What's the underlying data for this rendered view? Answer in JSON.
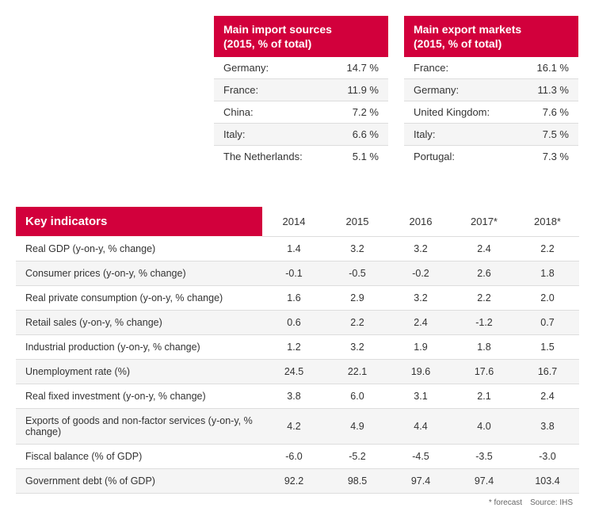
{
  "imports": {
    "title_line1": "Main import sources",
    "title_line2": "(2015, % of total)",
    "rows": [
      {
        "country": "Germany:",
        "value": "14.7 %"
      },
      {
        "country": "France:",
        "value": "11.9 %"
      },
      {
        "country": "China:",
        "value": "7.2 %"
      },
      {
        "country": "Italy:",
        "value": "6.6 %"
      },
      {
        "country": "The Netherlands:",
        "value": "5.1 %"
      }
    ]
  },
  "exports": {
    "title_line1": "Main export markets",
    "title_line2": "(2015, % of total)",
    "rows": [
      {
        "country": "France:",
        "value": "16.1 %"
      },
      {
        "country": "Germany:",
        "value": "11.3 %"
      },
      {
        "country": "United Kingdom:",
        "value": "7.6 %"
      },
      {
        "country": "Italy:",
        "value": "7.5 %"
      },
      {
        "country": "Portugal:",
        "value": "7.3 %"
      }
    ]
  },
  "key": {
    "header": "Key indicators",
    "years": [
      "2014",
      "2015",
      "2016",
      "2017*",
      "2018*"
    ],
    "rows": [
      {
        "label": "Real GDP (y-on-y, % change)",
        "vals": [
          "1.4",
          "3.2",
          "3.2",
          "2.4",
          "2.2"
        ]
      },
      {
        "label": "Consumer prices (y-on-y, % change)",
        "vals": [
          "-0.1",
          "-0.5",
          "-0.2",
          "2.6",
          "1.8"
        ]
      },
      {
        "label": "Real private consumption (y-on-y, % change)",
        "vals": [
          "1.6",
          "2.9",
          "3.2",
          "2.2",
          "2.0"
        ]
      },
      {
        "label": "Retail sales (y-on-y, % change)",
        "vals": [
          "0.6",
          "2.2",
          "2.4",
          "-1.2",
          "0.7"
        ]
      },
      {
        "label": "Industrial production (y-on-y, % change)",
        "vals": [
          "1.2",
          "3.2",
          "1.9",
          "1.8",
          "1.5"
        ]
      },
      {
        "label": "Unemployment rate (%)",
        "vals": [
          "24.5",
          "22.1",
          "19.6",
          "17.6",
          "16.7"
        ]
      },
      {
        "label": "Real fixed investment (y-on-y, % change)",
        "vals": [
          "3.8",
          "6.0",
          "3.1",
          "2.1",
          "2.4"
        ]
      },
      {
        "label": "Exports of goods and non-factor services (y-on-y, % change)",
        "vals": [
          "4.2",
          "4.9",
          "4.4",
          "4.0",
          "3.8"
        ]
      },
      {
        "label": "Fiscal balance (% of GDP)",
        "vals": [
          "-6.0",
          "-5.2",
          "-4.5",
          "-3.5",
          "-3.0"
        ]
      },
      {
        "label": "Government debt (% of GDP)",
        "vals": [
          "92.2",
          "98.5",
          "97.4",
          "97.4",
          "103.4"
        ]
      }
    ],
    "footnote": "* forecast Source: IHS"
  },
  "colors": {
    "brand": "#d2003c",
    "row_alt": "#f5f5f5",
    "border": "#dddddd",
    "text": "#333333"
  }
}
